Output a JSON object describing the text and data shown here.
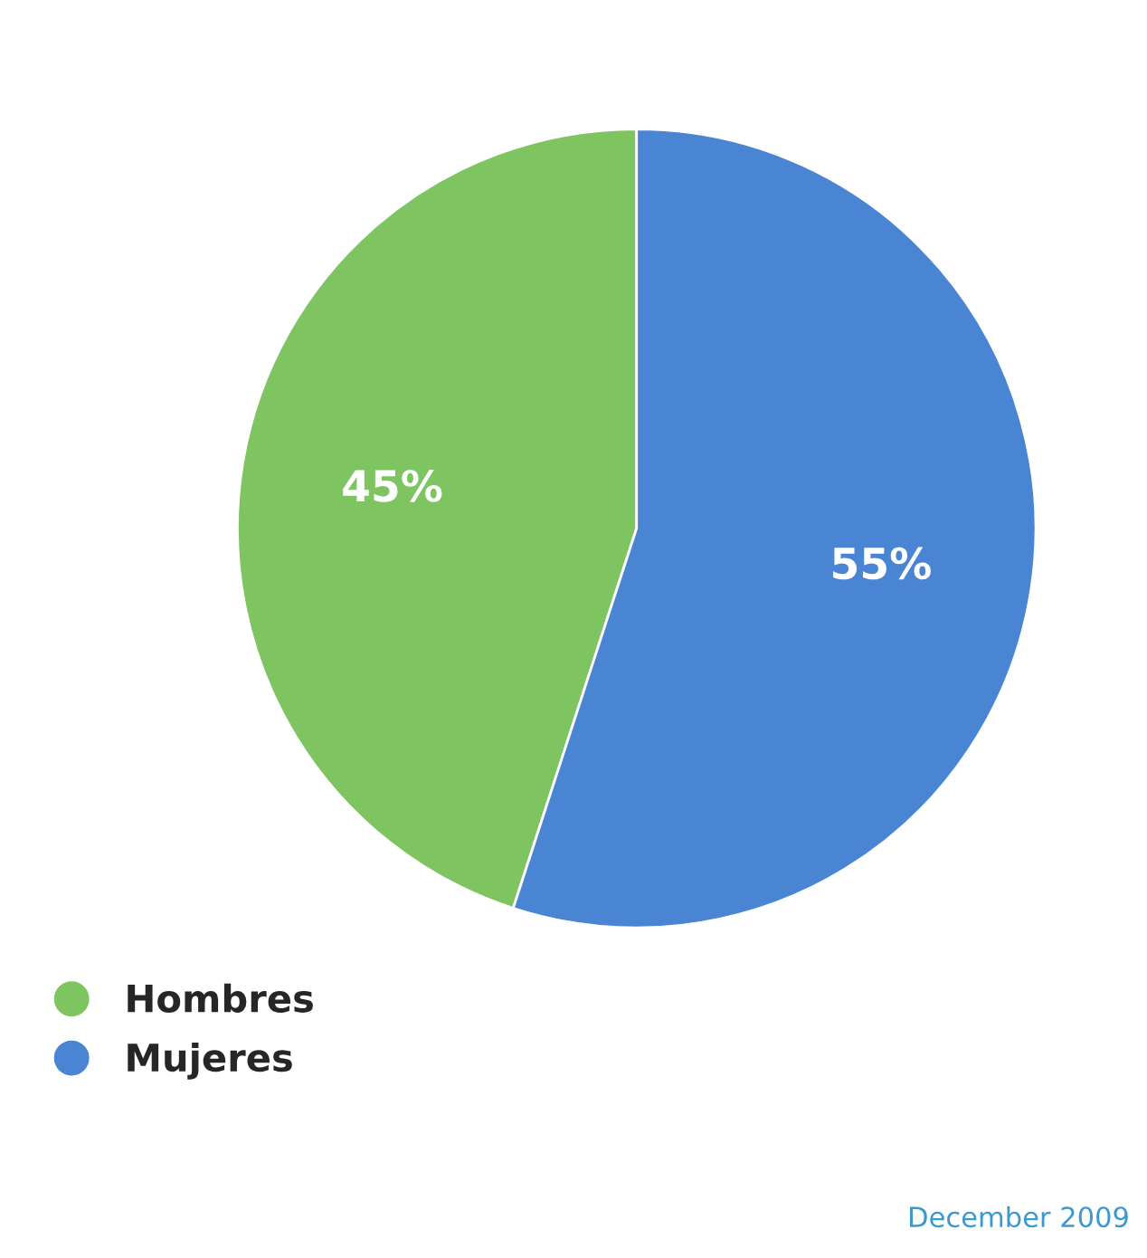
{
  "chart_data": {
    "type": "pie",
    "categories": [
      "Hombres",
      "Mujeres"
    ],
    "values": [
      45,
      55
    ],
    "colors": [
      "#7ec562",
      "#4a85d4"
    ],
    "value_labels": [
      "45%",
      "55%"
    ],
    "legend": "bottom left",
    "annotations": [
      "December 2009"
    ]
  }
}
